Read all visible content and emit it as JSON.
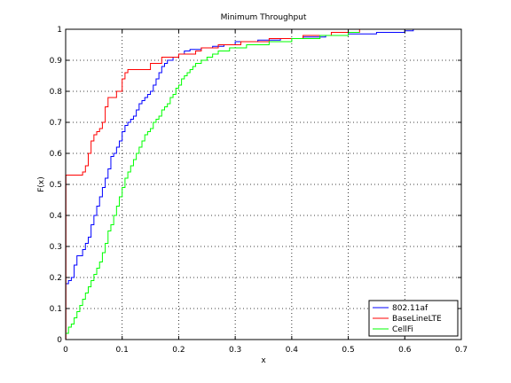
{
  "chart_data": {
    "type": "line",
    "title": "Minimum Throughput",
    "xlabel": "x",
    "ylabel": "F(x)",
    "xlim": [
      0,
      0.7
    ],
    "ylim": [
      0,
      1
    ],
    "xticks": [
      0,
      0.1,
      0.2,
      0.3,
      0.4,
      0.5,
      0.6,
      0.7
    ],
    "yticks": [
      0,
      0.1,
      0.2,
      0.3,
      0.4,
      0.5,
      0.6,
      0.7,
      0.8,
      0.9,
      1
    ],
    "xtick_labels": [
      "0",
      "0.1",
      "0.2",
      "0.3",
      "0.4",
      "0.5",
      "0.6",
      "0.7"
    ],
    "ytick_labels": [
      "0",
      "0.1",
      "0.2",
      "0.3",
      "0.4",
      "0.5",
      "0.6",
      "0.7",
      "0.8",
      "0.9",
      "1"
    ],
    "grid": true,
    "legend_position": "bottom-right",
    "series": [
      {
        "name": "802.11af",
        "color": "#0000ff",
        "step": true,
        "x": [
          0,
          0.005,
          0.01,
          0.015,
          0.02,
          0.03,
          0.035,
          0.04,
          0.045,
          0.05,
          0.055,
          0.06,
          0.065,
          0.07,
          0.075,
          0.08,
          0.085,
          0.09,
          0.095,
          0.1,
          0.105,
          0.11,
          0.115,
          0.12,
          0.125,
          0.13,
          0.135,
          0.14,
          0.145,
          0.15,
          0.155,
          0.16,
          0.165,
          0.17,
          0.175,
          0.18,
          0.19,
          0.2,
          0.21,
          0.22,
          0.24,
          0.26,
          0.28,
          0.3,
          0.34,
          0.38,
          0.42,
          0.46,
          0.5,
          0.55,
          0.6,
          0.615
        ],
        "y": [
          0.18,
          0.19,
          0.2,
          0.24,
          0.27,
          0.29,
          0.31,
          0.33,
          0.37,
          0.4,
          0.43,
          0.46,
          0.49,
          0.52,
          0.55,
          0.59,
          0.6,
          0.62,
          0.64,
          0.67,
          0.69,
          0.7,
          0.71,
          0.72,
          0.74,
          0.76,
          0.77,
          0.78,
          0.79,
          0.8,
          0.82,
          0.84,
          0.86,
          0.88,
          0.89,
          0.9,
          0.91,
          0.92,
          0.93,
          0.935,
          0.94,
          0.945,
          0.95,
          0.96,
          0.965,
          0.97,
          0.975,
          0.98,
          0.985,
          0.99,
          0.995,
          1.0
        ]
      },
      {
        "name": "BaseLineLTE",
        "color": "#ff0000",
        "step": true,
        "x": [
          0,
          0.0005,
          0.03,
          0.035,
          0.04,
          0.045,
          0.05,
          0.055,
          0.06,
          0.065,
          0.07,
          0.075,
          0.085,
          0.09,
          0.1,
          0.105,
          0.11,
          0.15,
          0.17,
          0.2,
          0.23,
          0.24,
          0.27,
          0.31,
          0.36,
          0.42,
          0.47,
          0.52
        ],
        "y": [
          0,
          0.53,
          0.54,
          0.56,
          0.6,
          0.64,
          0.66,
          0.67,
          0.68,
          0.7,
          0.75,
          0.78,
          0.78,
          0.8,
          0.84,
          0.86,
          0.87,
          0.89,
          0.91,
          0.92,
          0.93,
          0.94,
          0.95,
          0.96,
          0.97,
          0.98,
          0.99,
          1.0
        ]
      },
      {
        "name": "CellFi",
        "color": "#00ff00",
        "step": true,
        "x": [
          0,
          0.005,
          0.01,
          0.015,
          0.02,
          0.025,
          0.03,
          0.035,
          0.04,
          0.045,
          0.05,
          0.055,
          0.06,
          0.065,
          0.07,
          0.075,
          0.08,
          0.085,
          0.09,
          0.095,
          0.1,
          0.105,
          0.11,
          0.115,
          0.12,
          0.125,
          0.13,
          0.135,
          0.14,
          0.145,
          0.15,
          0.155,
          0.16,
          0.165,
          0.17,
          0.175,
          0.18,
          0.185,
          0.19,
          0.195,
          0.2,
          0.205,
          0.21,
          0.215,
          0.22,
          0.225,
          0.23,
          0.24,
          0.25,
          0.26,
          0.27,
          0.29,
          0.32,
          0.36,
          0.4,
          0.45,
          0.5,
          0.52
        ],
        "y": [
          0.02,
          0.04,
          0.05,
          0.07,
          0.09,
          0.11,
          0.13,
          0.15,
          0.17,
          0.19,
          0.21,
          0.23,
          0.25,
          0.28,
          0.31,
          0.35,
          0.37,
          0.4,
          0.43,
          0.46,
          0.49,
          0.52,
          0.54,
          0.56,
          0.58,
          0.6,
          0.62,
          0.64,
          0.66,
          0.67,
          0.68,
          0.7,
          0.71,
          0.72,
          0.74,
          0.75,
          0.76,
          0.78,
          0.79,
          0.81,
          0.82,
          0.84,
          0.85,
          0.86,
          0.87,
          0.88,
          0.89,
          0.9,
          0.91,
          0.92,
          0.93,
          0.94,
          0.95,
          0.96,
          0.97,
          0.98,
          0.99,
          0.99
        ]
      }
    ]
  }
}
